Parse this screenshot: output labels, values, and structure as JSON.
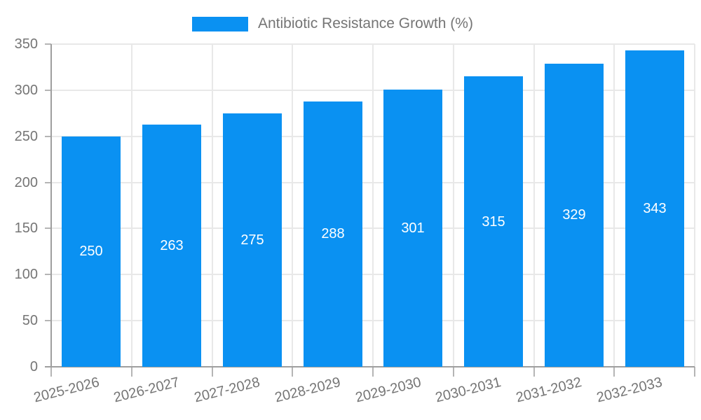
{
  "legend": {
    "label": "Antibiotic Resistance Growth (%)"
  },
  "colors": {
    "bar": "#0a91f2",
    "bar_label": "#ffffff",
    "axis": "#9e9e9e",
    "grid": "#e8e8e8",
    "tick": "#b5b5b5",
    "text": "#757575",
    "background": "#ffffff"
  },
  "chart_data": {
    "type": "bar",
    "title": "Antibiotic Resistance Growth (%)",
    "categories": [
      "2025-2026",
      "2026-2027",
      "2027-2028",
      "2028-2029",
      "2029-2030",
      "2030-2031",
      "2031-2032",
      "2032-2033"
    ],
    "values": [
      250,
      263,
      275,
      288,
      301,
      315,
      329,
      343
    ],
    "series": [
      {
        "name": "Antibiotic Resistance Growth (%)",
        "values": [
          250,
          263,
          275,
          288,
          301,
          315,
          329,
          343
        ]
      }
    ],
    "xlabel": "",
    "ylabel": "",
    "ylim": [
      0,
      350
    ],
    "y_ticks": [
      0,
      50,
      100,
      150,
      200,
      250,
      300,
      350
    ],
    "grid": true,
    "legend_position": "top-center",
    "bar_label_position": "inside-center",
    "x_label_rotation_deg": -14
  }
}
